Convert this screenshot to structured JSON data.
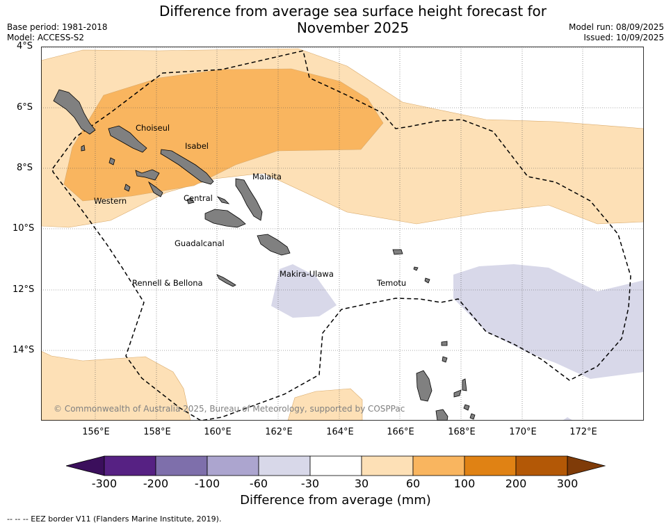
{
  "title_line1": "Difference from average sea surface height forecast for",
  "title_line2": "November 2025",
  "meta_left": {
    "base_period": "Base period: 1981-2018",
    "model": "Model: ACCESS-S2"
  },
  "meta_right": {
    "model_run": "Model run: 08/09/2025",
    "issued": "Issued: 10/09/2025"
  },
  "lat_labels": [
    "4°S",
    "6°S",
    "8°S",
    "10°S",
    "12°S",
    "14°S"
  ],
  "lon_labels": [
    "156°E",
    "158°E",
    "160°E",
    "162°E",
    "164°E",
    "166°E",
    "168°E",
    "170°E",
    "172°E"
  ],
  "regions": [
    "Choiseul",
    "Isabel",
    "Malaita",
    "Western",
    "Central",
    "Guadalcanal",
    "Makira-Ulawa",
    "Rennell & Bellona",
    "Temotu"
  ],
  "copyright": "© Commonwealth of Australia 2025, Bureau of Meteorology, supported by COSPPac",
  "colorbar": {
    "ticks": [
      "-300",
      "-200",
      "-100",
      "-60",
      "-30",
      "30",
      "60",
      "100",
      "200",
      "300"
    ],
    "colors": [
      "#3b0f5c",
      "#562183",
      "#7e6fab",
      "#aca5cf",
      "#d8d8e9",
      "#ffffff",
      "#fde0b6",
      "#f9b55f",
      "#e08214",
      "#b35806",
      "#7f3b08"
    ],
    "title": "Difference from average (mm)"
  },
  "eez_note": "--  --  -- EEZ border V11 (Flanders Marine Institute, 2019).",
  "colors": {
    "land": "#808080",
    "light_orange": "#fde0b6",
    "orange": "#f9b55f",
    "light_purple": "#d8d8e9"
  }
}
